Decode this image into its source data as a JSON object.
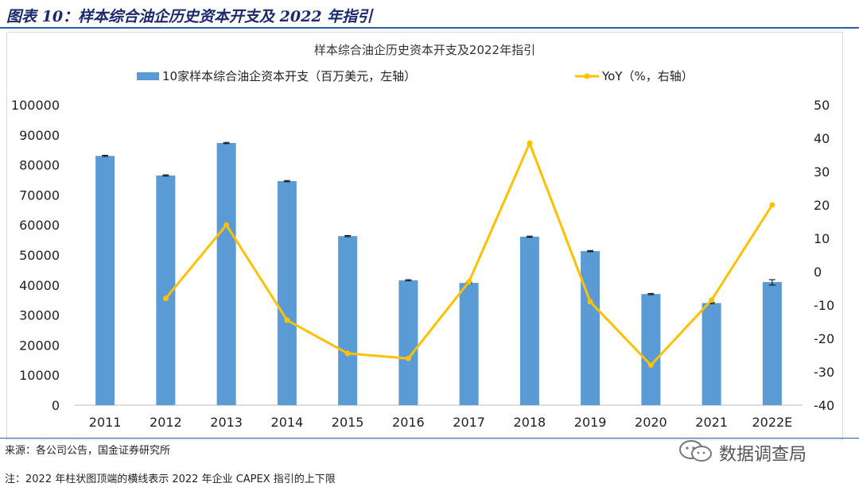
{
  "figure_title": "图表 10：样本综合油企历史资本开支及 2022 年指引",
  "source_text": "来源：各公司公告，国金证券研究所",
  "note_text": "注：2022 年柱状图顶端的横线表示 2022 年企业 CAPEX 指引的上下限",
  "watermark": {
    "text": "数据调查局",
    "icon": "wechat-icon"
  },
  "chart_data": {
    "type": "bar",
    "title": "样本综合油企历史资本开支及2022年指引",
    "categories": [
      "2011",
      "2012",
      "2013",
      "2014",
      "2015",
      "2016",
      "2017",
      "2018",
      "2019",
      "2020",
      "2021",
      "2022E"
    ],
    "series": [
      {
        "name": "10家样本综合油企资本开支（百万美元，左轴）",
        "type": "bar",
        "axis": "left",
        "color": "#5b9bd5",
        "values": [
          83000,
          76500,
          87300,
          74600,
          56300,
          41600,
          40700,
          56100,
          51300,
          37000,
          34000,
          41000
        ],
        "error_low": [
          82800,
          76300,
          87100,
          74400,
          56100,
          41400,
          40500,
          55900,
          51100,
          36800,
          33800,
          40000
        ],
        "error_high": [
          83200,
          76700,
          87500,
          74800,
          56500,
          41800,
          40900,
          56300,
          51500,
          37200,
          34200,
          41800
        ]
      },
      {
        "name": "YoY（%，右轴）",
        "type": "line",
        "axis": "right",
        "color": "#ffc000",
        "values": [
          null,
          -8,
          14,
          -14.5,
          -24.5,
          -26,
          -3,
          38.5,
          -9,
          -28,
          -8.5,
          20
        ]
      }
    ],
    "y_left": {
      "min": 0,
      "max": 100000,
      "ticks": [
        "0",
        "10000",
        "20000",
        "30000",
        "40000",
        "50000",
        "60000",
        "70000",
        "80000",
        "90000",
        "100000"
      ]
    },
    "y_right": {
      "min": -40,
      "max": 50,
      "ticks": [
        "-40",
        "-30",
        "-20",
        "-10",
        "0",
        "10",
        "20",
        "30",
        "40",
        "50"
      ]
    },
    "grid": false,
    "legend_position": "top"
  }
}
